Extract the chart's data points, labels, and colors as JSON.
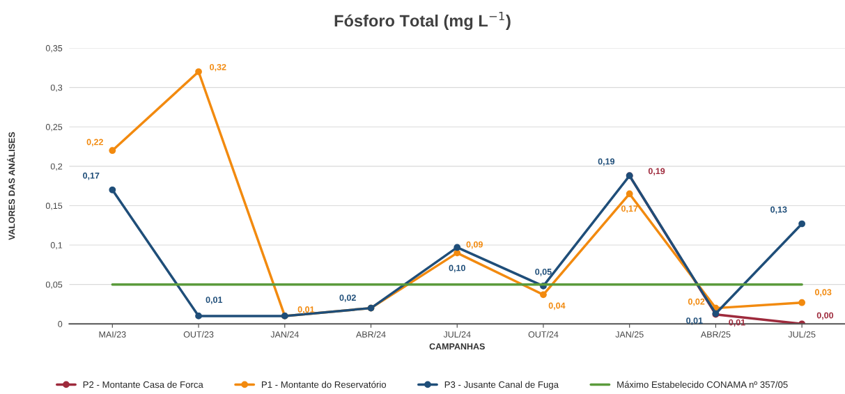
{
  "chart_data": {
    "type": "line",
    "title": "Fósforo Total (mg L$^{−1}$)",
    "xlabel": "CAMPANHAS",
    "ylabel": "VALORES DAS ANÁLISES",
    "categories": [
      "MAI/23",
      "OUT/23",
      "JAN/24",
      "ABR/24",
      "JUL/24",
      "OUT/24",
      "JAN/25",
      "ABR/25",
      "JUL/25"
    ],
    "series": [
      {
        "name": "P2 - Montante Casa de Forca",
        "color": "#9e2a3c",
        "values": [
          null,
          null,
          null,
          null,
          null,
          null,
          0.188,
          0.012,
          0.0
        ],
        "value_labels": [
          null,
          null,
          null,
          null,
          null,
          null,
          "0,19",
          "0,01",
          "0,00"
        ]
      },
      {
        "name": "P1 - Montante do Reservatório",
        "color": "#f28a0f",
        "values": [
          0.22,
          0.32,
          0.01,
          0.02,
          0.09,
          0.037,
          0.165,
          0.02,
          0.027
        ],
        "value_labels": [
          "0,22",
          "0,32",
          "0,01",
          null,
          "0,09",
          "0,04",
          "0,17",
          "0,02",
          "0,03"
        ]
      },
      {
        "name": "P3 - Jusante Canal de Fuga",
        "color": "#1f4e79",
        "values": [
          0.17,
          0.01,
          0.01,
          0.02,
          0.097,
          0.048,
          0.188,
          0.013,
          0.127
        ],
        "value_labels": [
          "0,17",
          "0,01",
          null,
          "0,02",
          "0,10",
          "0,05",
          "0,19",
          "0,01",
          "0,13"
        ]
      },
      {
        "name": "Máximo Estabelecido CONAMA nº 357/05",
        "color": "#5b9b3c",
        "marker": "none",
        "values": [
          0.05,
          0.05,
          0.05,
          0.05,
          0.05,
          0.05,
          0.05,
          0.05,
          0.05
        ]
      }
    ],
    "ylim": [
      0,
      0.35
    ],
    "yticks": [
      {
        "value": 0,
        "label": "0"
      },
      {
        "value": 0.05,
        "label": "0,05"
      },
      {
        "value": 0.1,
        "label": "0,1"
      },
      {
        "value": 0.15,
        "label": "0,15"
      },
      {
        "value": 0.2,
        "label": "0,2"
      },
      {
        "value": 0.25,
        "label": "0,25"
      },
      {
        "value": 0.3,
        "label": "0,3"
      },
      {
        "value": 0.35,
        "label": "0,35"
      }
    ],
    "grid": "y",
    "legend": "bottom",
    "marker": "circle",
    "line_style": "solid"
  }
}
